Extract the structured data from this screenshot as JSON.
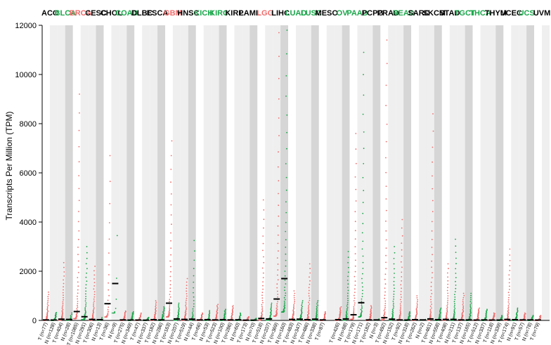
{
  "chart_data": {
    "type": "scatter",
    "title": "",
    "ylabel": "Transcripts Per Million (TPM)",
    "ylim": [
      0,
      12000
    ],
    "yticks": [
      0,
      2000,
      4000,
      6000,
      8000,
      10000,
      12000
    ],
    "colors": {
      "tumor": "#f06b6b",
      "normal": "#1aa64a",
      "highlight_red": "#f06b6b",
      "highlight_green": "#1aa64a",
      "plain": "#000000",
      "band": "#d6d6d6",
      "band_light": "#efefef"
    },
    "cancers": [
      {
        "name": "ACC",
        "color": "plain",
        "groups": [
          {
            "label": "T (n=77)",
            "kind": "T",
            "n": 77,
            "median": 20,
            "max": 1150
          },
          {
            "label": "N (n=128)",
            "kind": "N",
            "n": 128,
            "median": 15,
            "max": 320
          }
        ]
      },
      {
        "name": "BLCA",
        "color": "highlight_green",
        "groups": [
          {
            "label": "T (n=404)",
            "kind": "T",
            "n": 404,
            "median": 50,
            "max": 2350
          },
          {
            "label": "N (n=28)",
            "kind": "N",
            "n": 28,
            "median": 40,
            "max": 300
          }
        ]
      },
      {
        "name": "BRCA",
        "color": "highlight_red",
        "groups": [
          {
            "label": "T (n=1085)",
            "kind": "T",
            "n": 1085,
            "median": 360,
            "max": 9200
          },
          {
            "label": "N (n=291)",
            "kind": "N",
            "n": 291,
            "median": 150,
            "max": 3000
          }
        ]
      },
      {
        "name": "CESC",
        "color": "plain",
        "groups": [
          {
            "label": "T (n=306)",
            "kind": "T",
            "n": 306,
            "median": 40,
            "max": 2200
          },
          {
            "label": "N (n=13)",
            "kind": "N",
            "n": 13,
            "median": 30,
            "max": 120
          }
        ]
      },
      {
        "name": "CHOL",
        "color": "plain",
        "groups": [
          {
            "label": "T (n=36)",
            "kind": "T",
            "n": 36,
            "median": 680,
            "max": 6700
          },
          {
            "label": "N (n=9)",
            "kind": "N",
            "n": 9,
            "median": 1500,
            "max": 3450
          }
        ]
      },
      {
        "name": "COAD",
        "color": "highlight_green",
        "groups": [
          {
            "label": "T (n=275)",
            "kind": "T",
            "n": 275,
            "median": 20,
            "max": 380
          },
          {
            "label": "N (n=349)",
            "kind": "N",
            "n": 349,
            "median": 15,
            "max": 350
          }
        ]
      },
      {
        "name": "DLBC",
        "color": "plain",
        "groups": [
          {
            "label": "T (n=47)",
            "kind": "T",
            "n": 47,
            "median": 15,
            "max": 300
          },
          {
            "label": "N (n=337)",
            "kind": "N",
            "n": 337,
            "median": 10,
            "max": 120
          }
        ]
      },
      {
        "name": "ESCA",
        "color": "plain",
        "groups": [
          {
            "label": "T (n=182)",
            "kind": "T",
            "n": 182,
            "median": 30,
            "max": 800
          },
          {
            "label": "N (n=286)",
            "kind": "N",
            "n": 286,
            "median": 20,
            "max": 550
          }
        ]
      },
      {
        "name": "GBM",
        "color": "highlight_red",
        "groups": [
          {
            "label": "T (n=163)",
            "kind": "T",
            "n": 163,
            "median": 700,
            "max": 7300
          },
          {
            "label": "N (n=207)",
            "kind": "N",
            "n": 207,
            "median": 60,
            "max": 700
          }
        ]
      },
      {
        "name": "HNSC",
        "color": "plain",
        "groups": [
          {
            "label": "T (n=519)",
            "kind": "T",
            "n": 519,
            "median": 40,
            "max": 1700
          },
          {
            "label": "N (n=44)",
            "kind": "N",
            "n": 44,
            "median": 50,
            "max": 3250
          }
        ]
      },
      {
        "name": "KICH",
        "color": "highlight_green",
        "groups": [
          {
            "label": "T (n=66)",
            "kind": "T",
            "n": 66,
            "median": 20,
            "max": 300
          },
          {
            "label": "N (n=53)",
            "kind": "N",
            "n": 53,
            "median": 30,
            "max": 400
          }
        ]
      },
      {
        "name": "KIRC",
        "color": "highlight_green",
        "groups": [
          {
            "label": "T (n=523)",
            "kind": "T",
            "n": 523,
            "median": 20,
            "max": 650
          },
          {
            "label": "N (n=100)",
            "kind": "N",
            "n": 100,
            "median": 30,
            "max": 450
          }
        ]
      },
      {
        "name": "KIRP",
        "color": "plain",
        "groups": [
          {
            "label": "T (n=286)",
            "kind": "T",
            "n": 286,
            "median": 20,
            "max": 600
          },
          {
            "label": "N (n=60)",
            "kind": "N",
            "n": 60,
            "median": 25,
            "max": 300
          }
        ]
      },
      {
        "name": "LAML",
        "color": "plain",
        "groups": [
          {
            "label": "T (n=173)",
            "kind": "T",
            "n": 173,
            "median": 10,
            "max": 150
          },
          {
            "label": "N (n=70)",
            "kind": "N",
            "n": 70,
            "median": 10,
            "max": 80
          }
        ]
      },
      {
        "name": "LGG",
        "color": "highlight_red",
        "groups": [
          {
            "label": "T (n=518)",
            "kind": "T",
            "n": 518,
            "median": 80,
            "max": 4900
          },
          {
            "label": "N (n=207)",
            "kind": "N",
            "n": 207,
            "median": 60,
            "max": 700
          }
        ]
      },
      {
        "name": "LIHC",
        "color": "plain",
        "groups": [
          {
            "label": "T (n=369)",
            "kind": "T",
            "n": 369,
            "median": 870,
            "max": 11700
          },
          {
            "label": "N (n=160)",
            "kind": "N",
            "n": 160,
            "median": 1700,
            "max": 11800
          }
        ]
      },
      {
        "name": "LUAD",
        "color": "highlight_green",
        "groups": [
          {
            "label": "T (n=483)",
            "kind": "T",
            "n": 483,
            "median": 40,
            "max": 1200
          },
          {
            "label": "N (n=347)",
            "kind": "N",
            "n": 347,
            "median": 50,
            "max": 800
          }
        ]
      },
      {
        "name": "LUSC",
        "color": "highlight_green",
        "groups": [
          {
            "label": "T (n=486)",
            "kind": "T",
            "n": 486,
            "median": 30,
            "max": 2300
          },
          {
            "label": "N (n=338)",
            "kind": "N",
            "n": 338,
            "median": 50,
            "max": 800
          }
        ]
      },
      {
        "name": "MESO",
        "color": "plain",
        "groups": [
          {
            "label": "T (n=87)",
            "kind": "T",
            "n": 87,
            "median": 20,
            "max": 350
          }
        ]
      },
      {
        "name": "OV",
        "color": "highlight_green",
        "groups": [
          {
            "label": "T (n=426)",
            "kind": "T",
            "n": 426,
            "median": 30,
            "max": 550
          },
          {
            "label": "N (n=88)",
            "kind": "N",
            "n": 88,
            "median": 60,
            "max": 2800
          }
        ]
      },
      {
        "name": "PAAD",
        "color": "highlight_green",
        "groups": [
          {
            "label": "T (n=179)",
            "kind": "T",
            "n": 179,
            "median": 230,
            "max": 7600
          },
          {
            "label": "N (n=171)",
            "kind": "N",
            "n": 171,
            "median": 720,
            "max": 10900
          }
        ]
      },
      {
        "name": "PCPG",
        "color": "plain",
        "groups": [
          {
            "label": "T (n=182)",
            "kind": "T",
            "n": 182,
            "median": 20,
            "max": 600
          },
          {
            "label": "N (n=3)",
            "kind": "N",
            "n": 3,
            "median": 20,
            "max": 60
          }
        ]
      },
      {
        "name": "PRAD",
        "color": "plain",
        "groups": [
          {
            "label": "T (n=492)",
            "kind": "T",
            "n": 492,
            "median": 110,
            "max": 11400
          },
          {
            "label": "N (n=152)",
            "kind": "N",
            "n": 152,
            "median": 50,
            "max": 3000
          }
        ]
      },
      {
        "name": "READ",
        "color": "highlight_green",
        "groups": [
          {
            "label": "T (n=92)",
            "kind": "T",
            "n": 92,
            "median": 20,
            "max": 4100
          },
          {
            "label": "N (n=318)",
            "kind": "N",
            "n": 318,
            "median": 15,
            "max": 350
          }
        ]
      },
      {
        "name": "SARC",
        "color": "plain",
        "groups": [
          {
            "label": "T (n=262)",
            "kind": "T",
            "n": 262,
            "median": 30,
            "max": 1000
          },
          {
            "label": "N (n=2)",
            "kind": "N",
            "n": 2,
            "median": 20,
            "max": 40
          }
        ]
      },
      {
        "name": "SKCM",
        "color": "plain",
        "groups": [
          {
            "label": "T (n=461)",
            "kind": "T",
            "n": 461,
            "median": 60,
            "max": 8400
          },
          {
            "label": "N (n=558)",
            "kind": "N",
            "n": 558,
            "median": 30,
            "max": 500
          }
        ]
      },
      {
        "name": "STAD",
        "color": "plain",
        "groups": [
          {
            "label": "T (n=408)",
            "kind": "T",
            "n": 408,
            "median": 40,
            "max": 2300
          },
          {
            "label": "N (n=211)",
            "kind": "N",
            "n": 211,
            "median": 40,
            "max": 3300
          }
        ]
      },
      {
        "name": "TGCT",
        "color": "highlight_green",
        "groups": [
          {
            "label": "T (n=137)",
            "kind": "T",
            "n": 137,
            "median": 20,
            "max": 1100
          },
          {
            "label": "N (n=165)",
            "kind": "N",
            "n": 165,
            "median": 20,
            "max": 1100
          }
        ]
      },
      {
        "name": "THCA",
        "color": "highlight_green",
        "groups": [
          {
            "label": "T (n=512)",
            "kind": "T",
            "n": 512,
            "median": 15,
            "max": 500
          },
          {
            "label": "N (n=337)",
            "kind": "N",
            "n": 337,
            "median": 20,
            "max": 450
          }
        ]
      },
      {
        "name": "THYM",
        "color": "plain",
        "groups": [
          {
            "label": "T (n=118)",
            "kind": "T",
            "n": 118,
            "median": 15,
            "max": 300
          },
          {
            "label": "N (n=339)",
            "kind": "N",
            "n": 339,
            "median": 15,
            "max": 200
          }
        ]
      },
      {
        "name": "UCEC",
        "color": "plain",
        "groups": [
          {
            "label": "T (n=174)",
            "kind": "T",
            "n": 174,
            "median": 40,
            "max": 2900
          },
          {
            "label": "N (n=91)",
            "kind": "N",
            "n": 91,
            "median": 30,
            "max": 500
          }
        ]
      },
      {
        "name": "UCS",
        "color": "highlight_green",
        "groups": [
          {
            "label": "T (n=57)",
            "kind": "T",
            "n": 57,
            "median": 20,
            "max": 300
          },
          {
            "label": "N (n=78)",
            "kind": "N",
            "n": 78,
            "median": 20,
            "max": 200
          }
        ]
      },
      {
        "name": "UVM",
        "color": "plain",
        "groups": [
          {
            "label": "T (n=79)",
            "kind": "T",
            "n": 79,
            "median": 15,
            "max": 200
          }
        ]
      }
    ]
  }
}
